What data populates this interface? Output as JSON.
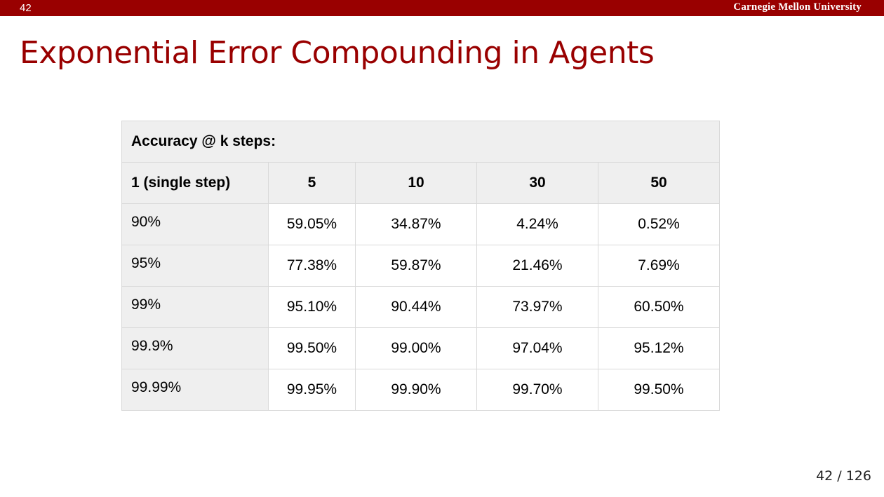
{
  "header": {
    "slide_number": "42",
    "brand": "Carnegie Mellon University",
    "brand_color": "#990000"
  },
  "slide": {
    "title": "Exponential Error Compounding in Agents"
  },
  "table": {
    "caption": "Accuracy @ k steps:",
    "columns": [
      "1 (single step)",
      "5",
      "10",
      "30",
      "50"
    ],
    "rows": [
      [
        "90%",
        "59.05%",
        "34.87%",
        "4.24%",
        "0.52%"
      ],
      [
        "95%",
        "77.38%",
        "59.87%",
        "21.46%",
        "7.69%"
      ],
      [
        "99%",
        "95.10%",
        "90.44%",
        "73.97%",
        "60.50%"
      ],
      [
        "99.9%",
        "99.50%",
        "99.00%",
        "97.04%",
        "95.12%"
      ],
      [
        "99.99%",
        "99.95%",
        "99.90%",
        "99.70%",
        "99.50%"
      ]
    ]
  },
  "footer": {
    "page_indicator": "42 / 126"
  }
}
